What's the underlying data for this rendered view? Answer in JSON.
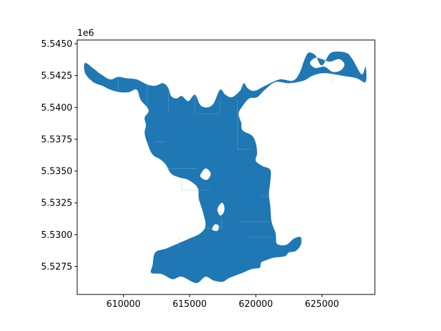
{
  "chart_data": {
    "type": "map",
    "title": "",
    "xlabel": "",
    "ylabel": "",
    "xlim": [
      606500,
      629000
    ],
    "ylim": [
      5525300,
      5545300
    ],
    "y_offset_label": "1e6",
    "x_ticks": [
      {
        "value": 610000,
        "label": "610000"
      },
      {
        "value": 615000,
        "label": "615000"
      },
      {
        "value": 620000,
        "label": "620000"
      },
      {
        "value": 625000,
        "label": "625000"
      }
    ],
    "y_ticks": [
      {
        "value": 5527500,
        "label": "5.5275"
      },
      {
        "value": 5530000,
        "label": "5.5300"
      },
      {
        "value": 5532500,
        "label": "5.5325"
      },
      {
        "value": 5535000,
        "label": "5.5350"
      },
      {
        "value": 5537500,
        "label": "5.5375"
      },
      {
        "value": 5540000,
        "label": "5.5400"
      },
      {
        "value": 5542500,
        "label": "5.5425"
      },
      {
        "value": 5545000,
        "label": "5.5450"
      }
    ],
    "fill_color": "#1f77b4",
    "edge_color": "#8fb8d8",
    "grid": false,
    "polygon_outline": [
      [
        607100,
        5543500
      ],
      [
        607800,
        5543000
      ],
      [
        608300,
        5542600
      ],
      [
        609000,
        5542200
      ],
      [
        609600,
        5542400
      ],
      [
        610200,
        5542300
      ],
      [
        611000,
        5542200
      ],
      [
        611800,
        5541800
      ],
      [
        612400,
        5541700
      ],
      [
        613000,
        5541900
      ],
      [
        613400,
        5541500
      ],
      [
        613600,
        5540900
      ],
      [
        614000,
        5540700
      ],
      [
        614400,
        5540900
      ],
      [
        614900,
        5540500
      ],
      [
        615400,
        5541000
      ],
      [
        615800,
        5540200
      ],
      [
        616300,
        5540000
      ],
      [
        616800,
        5540300
      ],
      [
        617300,
        5541400
      ],
      [
        617700,
        5541000
      ],
      [
        618200,
        5540800
      ],
      [
        618800,
        5541300
      ],
      [
        619100,
        5541900
      ],
      [
        619400,
        5541500
      ],
      [
        619900,
        5541300
      ],
      [
        620700,
        5541700
      ],
      [
        621800,
        5542200
      ],
      [
        622800,
        5542100
      ],
      [
        623300,
        5542700
      ],
      [
        623700,
        5543800
      ],
      [
        624000,
        5544300
      ],
      [
        624500,
        5544100
      ],
      [
        625000,
        5543300
      ],
      [
        625700,
        5544300
      ],
      [
        626800,
        5544300
      ],
      [
        627300,
        5543800
      ],
      [
        628000,
        5542600
      ],
      [
        628300,
        5543200
      ],
      [
        628300,
        5542000
      ],
      [
        627600,
        5542300
      ],
      [
        626500,
        5542500
      ],
      [
        625200,
        5542700
      ],
      [
        624300,
        5542500
      ],
      [
        623600,
        5542100
      ],
      [
        622500,
        5541900
      ],
      [
        621500,
        5542000
      ],
      [
        620700,
        5541400
      ],
      [
        620100,
        5540800
      ],
      [
        619500,
        5540700
      ],
      [
        619000,
        5540100
      ],
      [
        618700,
        5539500
      ],
      [
        618900,
        5538800
      ],
      [
        619000,
        5538200
      ],
      [
        619700,
        5537800
      ],
      [
        620000,
        5537200
      ],
      [
        620100,
        5536400
      ],
      [
        620000,
        5535800
      ],
      [
        620500,
        5535400
      ],
      [
        621100,
        5535100
      ],
      [
        621100,
        5534200
      ],
      [
        621000,
        5533200
      ],
      [
        621100,
        5532200
      ],
      [
        621200,
        5531000
      ],
      [
        621500,
        5530100
      ],
      [
        621600,
        5529300
      ],
      [
        622300,
        5529200
      ],
      [
        622900,
        5529700
      ],
      [
        623400,
        5529800
      ],
      [
        623400,
        5529200
      ],
      [
        623000,
        5528700
      ],
      [
        622500,
        5528600
      ],
      [
        622200,
        5528300
      ],
      [
        621400,
        5528200
      ],
      [
        620800,
        5528000
      ],
      [
        620400,
        5527800
      ],
      [
        620300,
        5527400
      ],
      [
        619700,
        5527300
      ],
      [
        619000,
        5527000
      ],
      [
        618000,
        5526600
      ],
      [
        617500,
        5526300
      ],
      [
        616800,
        5526400
      ],
      [
        616200,
        5526700
      ],
      [
        615500,
        5526200
      ],
      [
        614400,
        5526700
      ],
      [
        613700,
        5526500
      ],
      [
        612900,
        5526900
      ],
      [
        612100,
        5527000
      ],
      [
        612200,
        5527600
      ],
      [
        612400,
        5528600
      ],
      [
        613200,
        5528900
      ],
      [
        614100,
        5529300
      ],
      [
        615000,
        5529700
      ],
      [
        615800,
        5530100
      ],
      [
        616200,
        5530700
      ],
      [
        616000,
        5531800
      ],
      [
        615700,
        5532800
      ],
      [
        615600,
        5533700
      ],
      [
        614900,
        5534300
      ],
      [
        614200,
        5534500
      ],
      [
        613600,
        5534800
      ],
      [
        613200,
        5535500
      ],
      [
        612800,
        5535900
      ],
      [
        612200,
        5536300
      ],
      [
        611800,
        5537200
      ],
      [
        611600,
        5538000
      ],
      [
        611700,
        5538600
      ],
      [
        611600,
        5539200
      ],
      [
        611900,
        5539800
      ],
      [
        611300,
        5540600
      ],
      [
        611000,
        5541400
      ],
      [
        610400,
        5541200
      ],
      [
        609700,
        5541200
      ],
      [
        609000,
        5541400
      ],
      [
        608400,
        5541700
      ],
      [
        607700,
        5542000
      ],
      [
        607100,
        5542700
      ]
    ],
    "holes": [
      [
        [
          624100,
          5543500
        ],
        [
          624500,
          5543100
        ],
        [
          625200,
          5543200
        ],
        [
          625800,
          5542800
        ],
        [
          626400,
          5542900
        ],
        [
          626700,
          5543400
        ],
        [
          626300,
          5543800
        ],
        [
          625600,
          5543600
        ],
        [
          625000,
          5543800
        ],
        [
          624500,
          5543900
        ]
      ],
      [
        [
          617400,
          5532500
        ],
        [
          617100,
          5532000
        ],
        [
          617300,
          5531500
        ],
        [
          617600,
          5531800
        ],
        [
          617600,
          5532300
        ]
      ],
      [
        [
          615800,
          5534600
        ],
        [
          616300,
          5534300
        ],
        [
          616600,
          5534800
        ],
        [
          616200,
          5535200
        ]
      ],
      [
        [
          616900,
          5530800
        ],
        [
          616700,
          5530400
        ],
        [
          617100,
          5530300
        ],
        [
          617200,
          5530700
        ]
      ]
    ]
  }
}
